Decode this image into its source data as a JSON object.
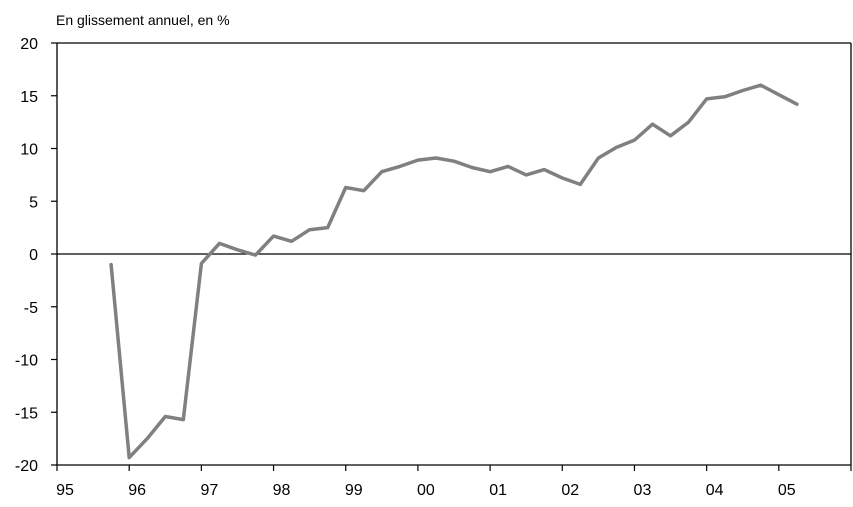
{
  "chart_data": {
    "type": "line",
    "title": "",
    "subtitle": "En glissement annuel, en %",
    "xlabel": "",
    "ylabel": "",
    "x_tick_labels": [
      "95",
      "96",
      "97",
      "98",
      "99",
      "00",
      "01",
      "02",
      "03",
      "04",
      "05"
    ],
    "y_tick_labels": [
      "20",
      "15",
      "10",
      "5",
      "0",
      "-5",
      "-10",
      "-15",
      "-20"
    ],
    "ylim": [
      -20,
      20
    ],
    "xlim": [
      1995.0,
      2006.0
    ],
    "grid": false,
    "zero_line": true,
    "legend": "none",
    "line_color": "#808080",
    "series": [
      {
        "x": [
          1995.75,
          1996.0,
          1996.25,
          1996.5,
          1996.75,
          1997.0,
          1997.25,
          1997.5,
          1997.75,
          1998.0,
          1998.25,
          1998.5,
          1998.75,
          1999.0,
          1999.25,
          1999.5,
          1999.75,
          2000.0,
          2000.25,
          2000.5,
          2000.75,
          2001.0,
          2001.25,
          2001.5,
          2001.75,
          2002.0,
          2002.25,
          2002.5,
          2002.75,
          2003.0,
          2003.25,
          2003.5,
          2003.75,
          2004.0,
          2004.25,
          2004.5,
          2004.75,
          2005.0,
          2005.25
        ],
        "values": [
          -1.0,
          -19.3,
          -17.5,
          -15.4,
          -15.7,
          -0.9,
          1.0,
          0.4,
          -0.1,
          1.7,
          1.2,
          2.3,
          2.5,
          6.3,
          6.0,
          7.8,
          8.3,
          8.9,
          9.1,
          8.8,
          8.2,
          7.8,
          8.3,
          7.5,
          8.0,
          7.2,
          6.6,
          9.1,
          10.1,
          10.8,
          12.3,
          11.2,
          12.5,
          14.7,
          14.9,
          15.5,
          16.0,
          15.1,
          14.2
        ]
      }
    ]
  }
}
